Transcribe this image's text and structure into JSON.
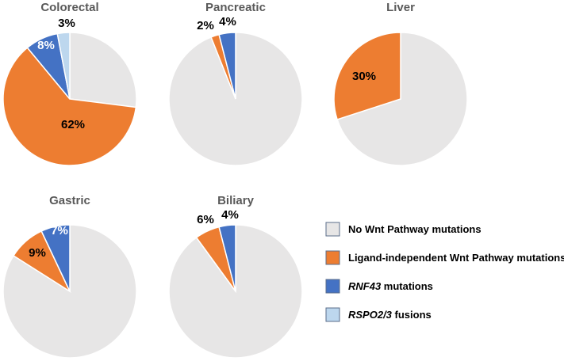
{
  "chart_data": [
    {
      "type": "pie",
      "title": "Colorectal",
      "slices": [
        {
          "category": "No Wnt Pathway mutations",
          "value": 27,
          "label": ""
        },
        {
          "category": "Ligand-independent Wnt Pathway mutations",
          "value": 62,
          "label": "62%"
        },
        {
          "category": "RNF43 mutations",
          "value": 8,
          "label": "8%"
        },
        {
          "category": "RSPO2/3 fusions",
          "value": 3,
          "label": "3%"
        }
      ]
    },
    {
      "type": "pie",
      "title": "Pancreatic",
      "slices": [
        {
          "category": "No Wnt Pathway mutations",
          "value": 94,
          "label": ""
        },
        {
          "category": "Ligand-independent Wnt Pathway mutations",
          "value": 2,
          "label": "2%"
        },
        {
          "category": "RNF43 mutations",
          "value": 4,
          "label": "4%"
        }
      ]
    },
    {
      "type": "pie",
      "title": "Liver",
      "slices": [
        {
          "category": "No Wnt Pathway mutations",
          "value": 70,
          "label": ""
        },
        {
          "category": "Ligand-independent Wnt Pathway mutations",
          "value": 30,
          "label": "30%"
        }
      ]
    },
    {
      "type": "pie",
      "title": "Gastric",
      "slices": [
        {
          "category": "No Wnt Pathway mutations",
          "value": 84,
          "label": ""
        },
        {
          "category": "Ligand-independent Wnt Pathway mutations",
          "value": 9,
          "label": "9%"
        },
        {
          "category": "RNF43 mutations",
          "value": 7,
          "label": "7%"
        }
      ]
    },
    {
      "type": "pie",
      "title": "Biliary",
      "slices": [
        {
          "category": "No Wnt Pathway mutations",
          "value": 90,
          "label": ""
        },
        {
          "category": "Ligand-independent Wnt Pathway mutations",
          "value": 6,
          "label": "6%"
        },
        {
          "category": "RNF43 mutations",
          "value": 4,
          "label": "4%"
        }
      ]
    }
  ],
  "legend": {
    "placement": "bottom-right",
    "items": [
      {
        "category": "No Wnt Pathway mutations",
        "text_italic": "",
        "text": "No Wnt Pathway mutations",
        "color": "#E7E6E6"
      },
      {
        "category": "Ligand-independent Wnt Pathway mutations",
        "text_italic": "",
        "text": "Ligand-independent Wnt Pathway mutations",
        "color": "#ED7D31"
      },
      {
        "category": "RNF43 mutations",
        "text_italic": "RNF43",
        "text": " mutations",
        "color": "#4472C4"
      },
      {
        "category": "RSPO2/3 fusions",
        "text_italic": "RSPO2/3",
        "text": " fusions",
        "color": "#BDD7EE"
      }
    ]
  },
  "colors": {
    "No Wnt Pathway mutations": "#E7E6E6",
    "Ligand-independent Wnt Pathway mutations": "#ED7D31",
    "RNF43 mutations": "#4472C4",
    "RSPO2/3 fusions": "#BDD7EE",
    "slice_border": "#ffffff",
    "legend_box_border": "#5b6d8a"
  }
}
